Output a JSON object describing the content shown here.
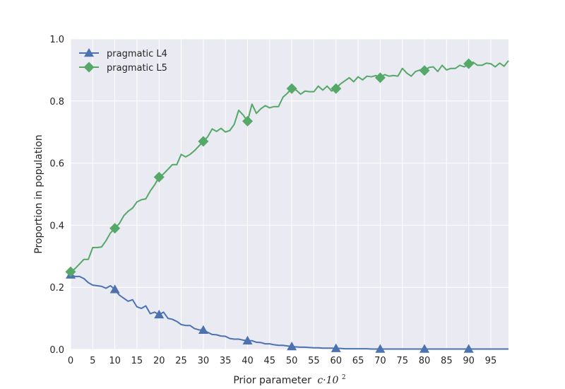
{
  "chart_data": {
    "type": "line",
    "xlabel": "Prior parameter",
    "xlabel_math": "c·10",
    "xlabel_exp": "2",
    "ylabel": "Proportion in population",
    "xlim": [
      0,
      99
    ],
    "ylim": [
      0,
      1.0
    ],
    "xticks": [
      "0",
      "5",
      "10",
      "15",
      "20",
      "25",
      "30",
      "35",
      "40",
      "45",
      "50",
      "55",
      "60",
      "65",
      "70",
      "75",
      "80",
      "85",
      "90",
      "95"
    ],
    "yticks": [
      "0.0",
      "0.2",
      "0.4",
      "0.6",
      "0.8",
      "1.0"
    ],
    "grid": true,
    "legend_position": "top-left",
    "x": [
      0,
      1,
      2,
      3,
      4,
      5,
      6,
      7,
      8,
      9,
      10,
      11,
      12,
      13,
      14,
      15,
      16,
      17,
      18,
      19,
      20,
      21,
      22,
      23,
      24,
      25,
      26,
      27,
      28,
      29,
      30,
      31,
      32,
      33,
      34,
      35,
      36,
      37,
      38,
      39,
      40,
      41,
      42,
      43,
      44,
      45,
      46,
      47,
      48,
      49,
      50,
      51,
      52,
      53,
      54,
      55,
      56,
      57,
      58,
      59,
      60,
      61,
      62,
      63,
      64,
      65,
      66,
      67,
      68,
      69,
      70,
      71,
      72,
      73,
      74,
      75,
      76,
      77,
      78,
      79,
      80,
      81,
      82,
      83,
      84,
      85,
      86,
      87,
      88,
      89,
      90,
      91,
      92,
      93,
      94,
      95,
      96,
      97,
      98,
      99
    ],
    "series": [
      {
        "name": "pragmatic L4",
        "color": "#4c72b0",
        "marker": "triangle",
        "marker_x": [
          0,
          10,
          20,
          30,
          40,
          50,
          60,
          70,
          80,
          90
        ],
        "values": [
          0.24,
          0.235,
          0.235,
          0.228,
          0.215,
          0.207,
          0.205,
          0.203,
          0.197,
          0.205,
          0.193,
          0.175,
          0.165,
          0.155,
          0.16,
          0.137,
          0.132,
          0.14,
          0.115,
          0.12,
          0.112,
          0.12,
          0.1,
          0.097,
          0.09,
          0.08,
          0.077,
          0.077,
          0.067,
          0.063,
          0.062,
          0.055,
          0.048,
          0.047,
          0.043,
          0.042,
          0.035,
          0.033,
          0.033,
          0.03,
          0.028,
          0.028,
          0.023,
          0.022,
          0.018,
          0.018,
          0.015,
          0.013,
          0.013,
          0.011,
          0.009,
          0.008,
          0.007,
          0.007,
          0.006,
          0.005,
          0.005,
          0.004,
          0.004,
          0.004,
          0.003,
          0.003,
          0.002,
          0.002,
          0.002,
          0.002,
          0.002,
          0.002,
          0.001,
          0.001,
          0.001,
          0.001,
          0.001,
          0.001,
          0.001,
          0.001,
          0.001,
          0.001,
          0.001,
          0.001,
          0.001,
          0.001,
          0.001,
          0.001,
          0.001,
          0.001,
          0.001,
          0.001,
          0.001,
          0.001,
          0.001,
          0.001,
          0.001,
          0.001,
          0.001,
          0.001,
          0.001,
          0.001,
          0.001,
          0.001
        ]
      },
      {
        "name": "pragmatic L5",
        "color": "#55a868",
        "marker": "diamond",
        "marker_x": [
          0,
          10,
          20,
          30,
          40,
          50,
          60,
          70,
          80,
          90
        ],
        "values": [
          0.25,
          0.26,
          0.275,
          0.29,
          0.29,
          0.328,
          0.328,
          0.33,
          0.35,
          0.375,
          0.39,
          0.405,
          0.43,
          0.445,
          0.455,
          0.475,
          0.482,
          0.485,
          0.51,
          0.53,
          0.555,
          0.565,
          0.58,
          0.595,
          0.595,
          0.628,
          0.62,
          0.628,
          0.64,
          0.655,
          0.67,
          0.685,
          0.71,
          0.702,
          0.712,
          0.7,
          0.705,
          0.725,
          0.77,
          0.755,
          0.735,
          0.79,
          0.76,
          0.775,
          0.785,
          0.778,
          0.782,
          0.782,
          0.812,
          0.825,
          0.84,
          0.835,
          0.822,
          0.832,
          0.83,
          0.83,
          0.848,
          0.835,
          0.848,
          0.832,
          0.84,
          0.855,
          0.865,
          0.875,
          0.862,
          0.878,
          0.868,
          0.88,
          0.878,
          0.882,
          0.875,
          0.885,
          0.88,
          0.882,
          0.88,
          0.905,
          0.89,
          0.88,
          0.895,
          0.9,
          0.898,
          0.908,
          0.91,
          0.895,
          0.915,
          0.9,
          0.905,
          0.905,
          0.915,
          0.91,
          0.92,
          0.925,
          0.915,
          0.915,
          0.922,
          0.92,
          0.91,
          0.922,
          0.912,
          0.93
        ]
      }
    ]
  }
}
